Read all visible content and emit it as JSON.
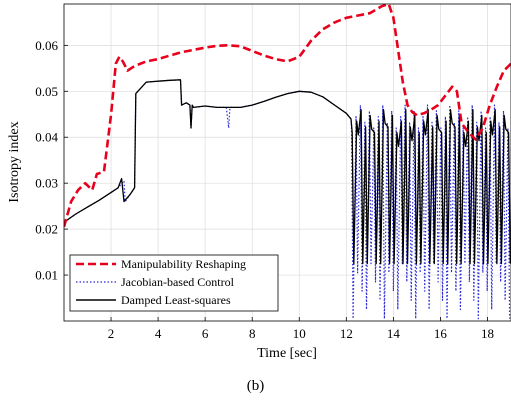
{
  "caption": "(b)",
  "chart_data": {
    "type": "line",
    "xlabel": "Time [sec]",
    "ylabel": "Isotropy index",
    "xlim": [
      0,
      19
    ],
    "ylim": [
      0,
      0.069
    ],
    "xticks": [
      2,
      4,
      6,
      8,
      10,
      12,
      14,
      16,
      18
    ],
    "yticks": [
      0.01,
      0.02,
      0.03,
      0.04,
      0.05,
      0.06
    ],
    "grid": true,
    "legend_position": "bottom-left",
    "series": [
      {
        "name": "Manipulability Reshaping",
        "color": "#e8001c",
        "style": "dashed",
        "x": [
          0,
          0.3,
          0.6,
          0.9,
          1.2,
          1.4,
          1.7,
          2.0,
          2.2,
          2.35,
          2.5,
          2.7,
          3.0,
          3.5,
          4.0,
          4.5,
          5.0,
          5.5,
          6.0,
          6.5,
          7.0,
          7.5,
          8.0,
          8.5,
          9.0,
          9.5,
          10.0,
          10.5,
          11.0,
          11.5,
          12.0,
          12.5,
          13.0,
          13.5,
          13.8,
          14.0,
          14.2,
          14.4,
          14.6,
          14.8,
          15.0,
          15.3,
          15.6,
          15.9,
          16.2,
          16.5,
          16.7,
          16.9,
          17.2,
          17.5,
          17.8,
          18.1,
          18.4,
          18.7,
          19.0
        ],
        "y": [
          0.0205,
          0.026,
          0.0285,
          0.03,
          0.0285,
          0.032,
          0.0325,
          0.045,
          0.056,
          0.0575,
          0.0565,
          0.0545,
          0.0555,
          0.0565,
          0.057,
          0.0578,
          0.0585,
          0.059,
          0.0595,
          0.0599,
          0.06,
          0.0598,
          0.0588,
          0.0578,
          0.057,
          0.0565,
          0.0575,
          0.061,
          0.0635,
          0.065,
          0.066,
          0.0665,
          0.067,
          0.0685,
          0.069,
          0.066,
          0.059,
          0.052,
          0.047,
          0.0455,
          0.0448,
          0.0452,
          0.046,
          0.047,
          0.049,
          0.051,
          0.05,
          0.043,
          0.041,
          0.0395,
          0.042,
          0.047,
          0.051,
          0.0545,
          0.056
        ]
      },
      {
        "name": "Jacobian-based Control",
        "color": "#2b2bd6",
        "style": "dotted",
        "x": [
          0,
          0.5,
          1.0,
          1.5,
          2.0,
          2.3,
          2.55,
          2.6,
          2.8,
          3.0,
          3.05,
          3.5,
          4.0,
          4.5,
          4.95,
          5.0,
          5.2,
          5.35,
          5.4,
          5.45,
          5.5,
          6.0,
          6.5,
          6.9,
          7.0,
          7.05,
          7.5,
          8.0,
          8.5,
          9.0,
          9.5,
          10.0,
          10.5,
          11.0,
          11.5,
          12.0,
          12.2
        ],
        "y": [
          0.0215,
          0.0233,
          0.0248,
          0.0263,
          0.028,
          0.029,
          0.0305,
          0.026,
          0.0275,
          0.029,
          0.0495,
          0.052,
          0.0522,
          0.0524,
          0.0525,
          0.047,
          0.0475,
          0.047,
          0.042,
          0.047,
          0.0465,
          0.0468,
          0.0465,
          0.0465,
          0.042,
          0.0465,
          0.0465,
          0.047,
          0.0478,
          0.0487,
          0.0495,
          0.05,
          0.0498,
          0.0488,
          0.047,
          0.0452,
          0.044
        ]
      },
      {
        "name": "Damped Least-squares",
        "color": "#000000",
        "style": "solid",
        "x": [
          0,
          0.5,
          1.0,
          1.5,
          2.0,
          2.3,
          2.45,
          2.55,
          2.8,
          3.0,
          3.05,
          3.5,
          4.0,
          4.5,
          4.95,
          5.0,
          5.2,
          5.35,
          5.4,
          5.45,
          5.5,
          6.0,
          6.5,
          7.0,
          7.5,
          8.0,
          8.5,
          9.0,
          9.5,
          10.0,
          10.5,
          11.0,
          11.5,
          12.0,
          12.2
        ],
        "y": [
          0.0215,
          0.0233,
          0.0248,
          0.0263,
          0.028,
          0.029,
          0.031,
          0.026,
          0.0275,
          0.029,
          0.0495,
          0.052,
          0.0522,
          0.0524,
          0.0525,
          0.047,
          0.0475,
          0.047,
          0.042,
          0.047,
          0.0465,
          0.0468,
          0.0465,
          0.0465,
          0.0465,
          0.047,
          0.0478,
          0.0487,
          0.0495,
          0.05,
          0.0498,
          0.0488,
          0.047,
          0.0452,
          0.044
        ]
      }
    ],
    "oscillation_region": {
      "x_range": [
        12.2,
        19
      ],
      "band_high": [
        0.042,
        0.047
      ],
      "dls_low": 0.0125,
      "jbc_low": [
        0.0005,
        0.0125
      ]
    }
  }
}
